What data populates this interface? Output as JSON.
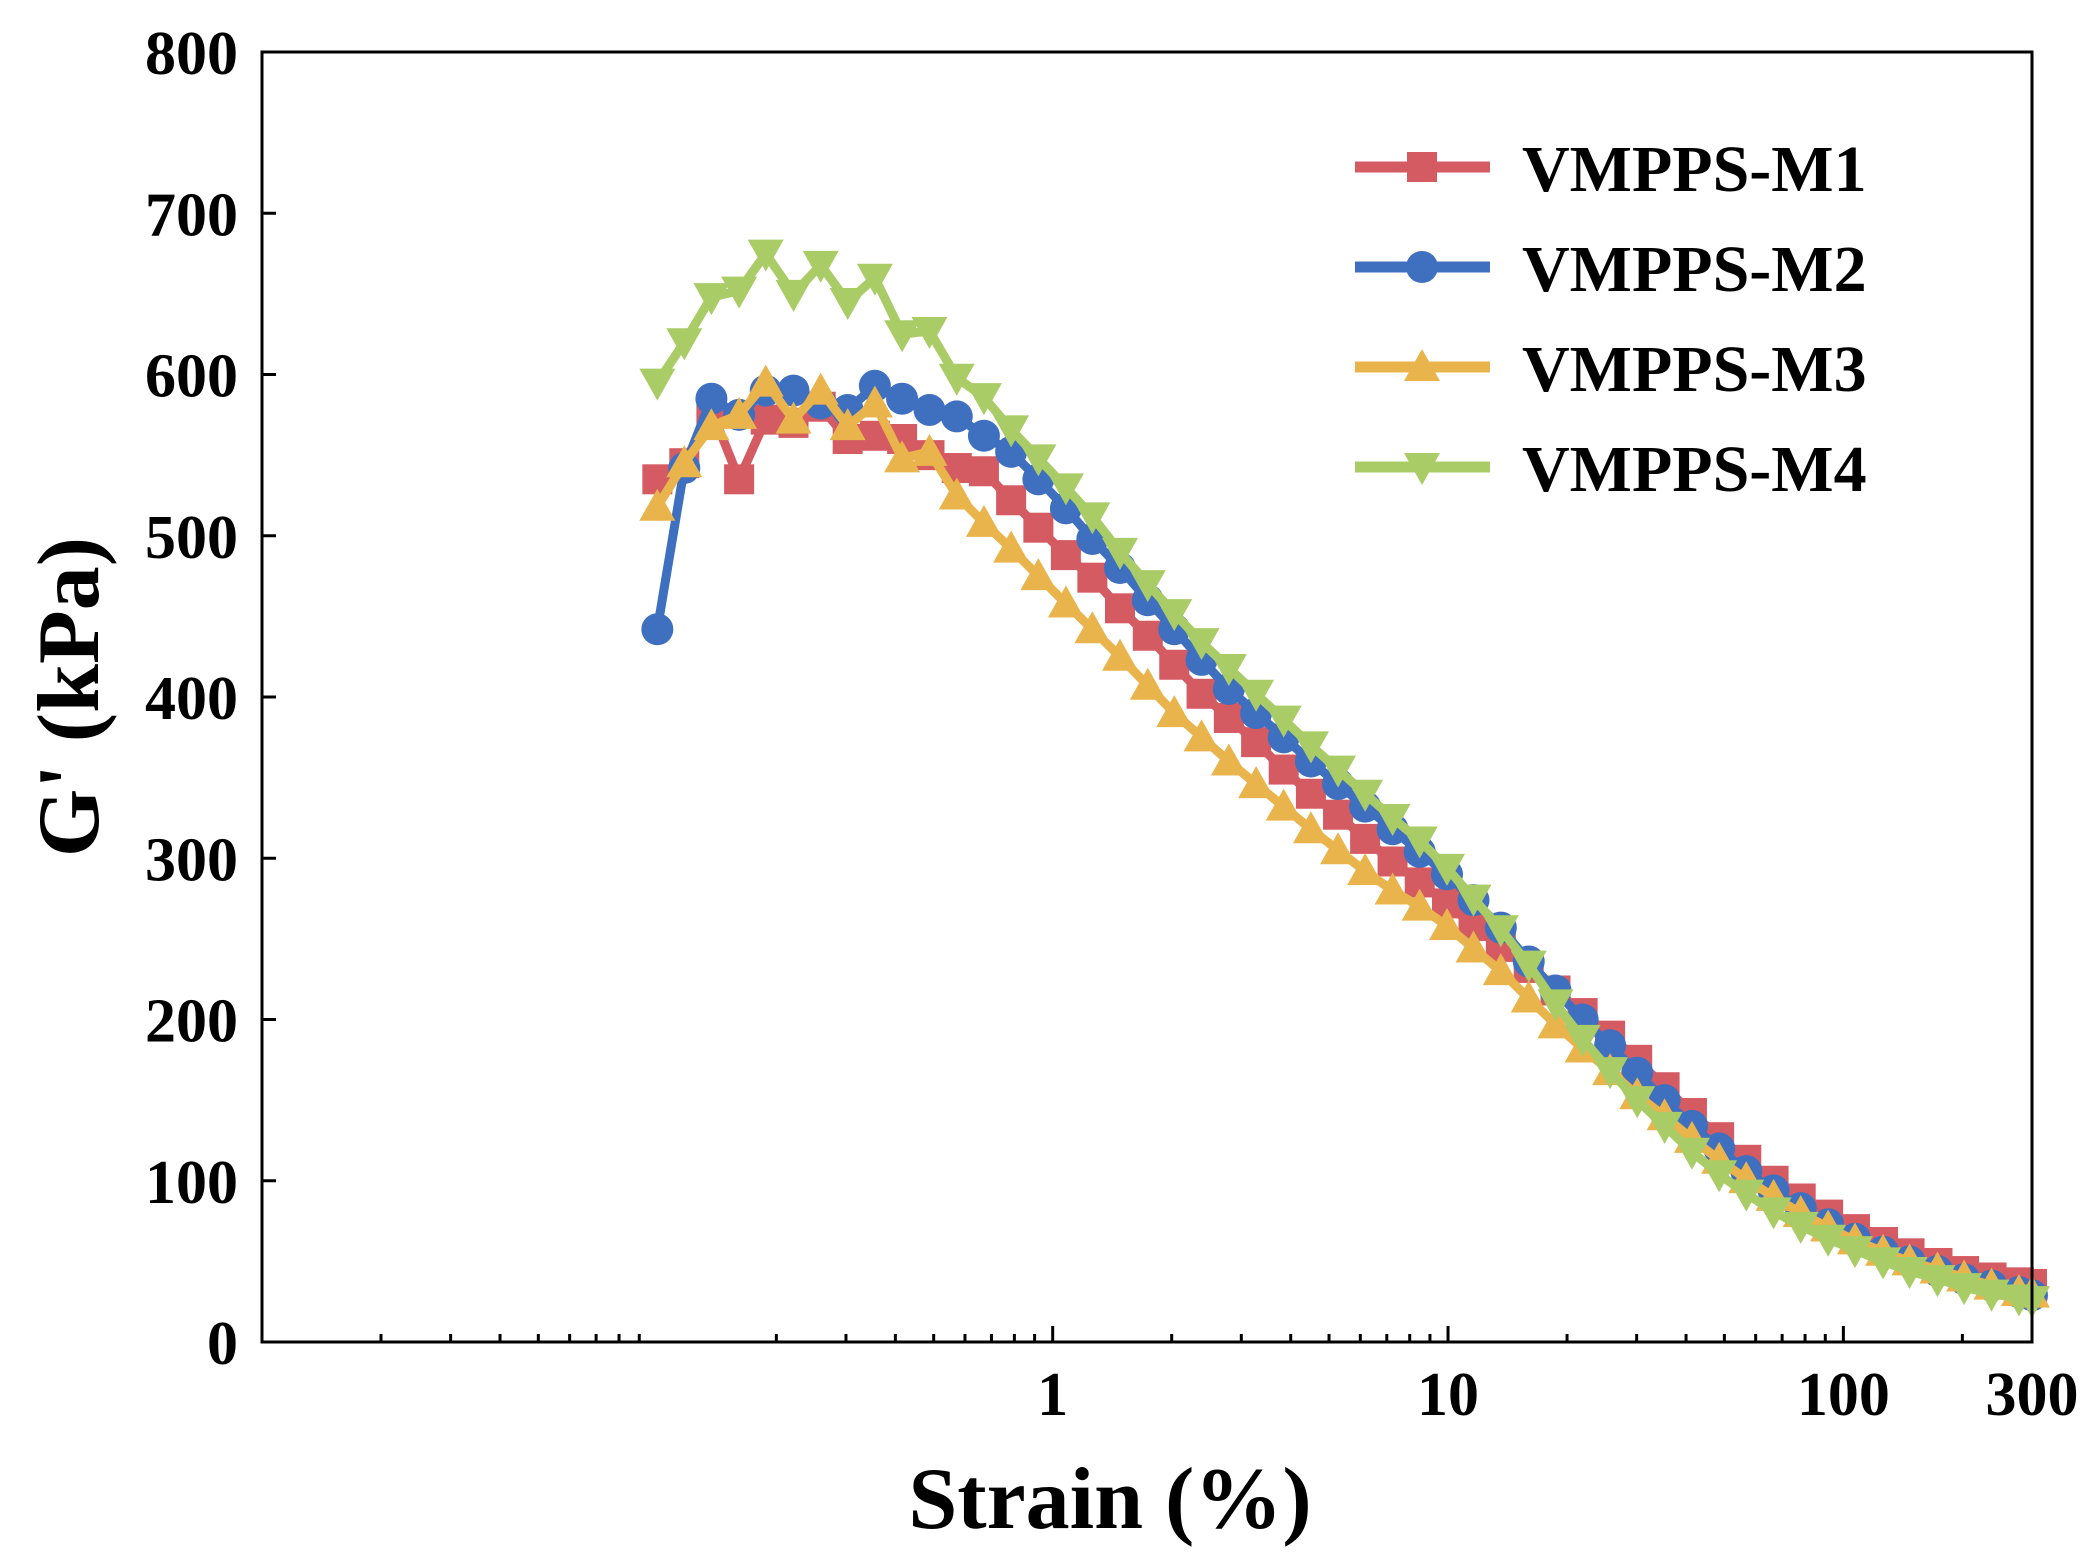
{
  "chart_data": {
    "type": "line",
    "xscale": "log",
    "xlabel": "Strain (%)",
    "ylabel": "G' (kPa)",
    "xlim": [
      0.01,
      300
    ],
    "ylim": [
      0,
      800
    ],
    "xticks": [
      1,
      10,
      100,
      300
    ],
    "xtick_labels": [
      "1",
      "10",
      "100",
      "300"
    ],
    "yticks": [
      0,
      100,
      200,
      300,
      400,
      500,
      600,
      700,
      800
    ],
    "ytick_labels": [
      "0",
      "100",
      "200",
      "300",
      "400",
      "500",
      "600",
      "700",
      "800"
    ],
    "legend_position": "top-right",
    "series": [
      {
        "name": "VMPPS-M1",
        "color": "#d55b63",
        "marker": "square",
        "points": [
          [
            0.1,
            535
          ],
          [
            0.117,
            545
          ],
          [
            0.137,
            578
          ],
          [
            0.161,
            535
          ],
          [
            0.188,
            572
          ],
          [
            0.221,
            570
          ],
          [
            0.259,
            580
          ],
          [
            0.303,
            560
          ],
          [
            0.355,
            562
          ],
          [
            0.416,
            560
          ],
          [
            0.488,
            550
          ],
          [
            0.572,
            542
          ],
          [
            0.67,
            540
          ],
          [
            0.785,
            522
          ],
          [
            0.92,
            505
          ],
          [
            1.08,
            488
          ],
          [
            1.26,
            474
          ],
          [
            1.48,
            455
          ],
          [
            1.74,
            438
          ],
          [
            2.03,
            420
          ],
          [
            2.38,
            402
          ],
          [
            2.79,
            387
          ],
          [
            3.27,
            372
          ],
          [
            3.84,
            355
          ],
          [
            4.5,
            340
          ],
          [
            5.27,
            327
          ],
          [
            6.17,
            312
          ],
          [
            7.24,
            298
          ],
          [
            8.48,
            285
          ],
          [
            9.94,
            272
          ],
          [
            11.6,
            258
          ],
          [
            13.6,
            245
          ],
          [
            16.0,
            232
          ],
          [
            18.7,
            218
          ],
          [
            21.9,
            204
          ],
          [
            25.7,
            190
          ],
          [
            30.1,
            175
          ],
          [
            35.3,
            158
          ],
          [
            41.4,
            142
          ],
          [
            48.5,
            127
          ],
          [
            56.8,
            113
          ],
          [
            66.6,
            100
          ],
          [
            78.0,
            89
          ],
          [
            91.5,
            79
          ],
          [
            107,
            70
          ],
          [
            126,
            62
          ],
          [
            147,
            55
          ],
          [
            173,
            49
          ],
          [
            202,
            44
          ],
          [
            237,
            40
          ],
          [
            278,
            37
          ],
          [
            300,
            36
          ]
        ]
      },
      {
        "name": "VMPPS-M2",
        "color": "#3f6fbf",
        "marker": "circle",
        "points": [
          [
            0.1,
            442
          ],
          [
            0.117,
            542
          ],
          [
            0.137,
            585
          ],
          [
            0.161,
            575
          ],
          [
            0.188,
            590
          ],
          [
            0.221,
            590
          ],
          [
            0.259,
            582
          ],
          [
            0.303,
            578
          ],
          [
            0.355,
            593
          ],
          [
            0.416,
            585
          ],
          [
            0.488,
            578
          ],
          [
            0.572,
            574
          ],
          [
            0.67,
            562
          ],
          [
            0.785,
            552
          ],
          [
            0.92,
            535
          ],
          [
            1.08,
            517
          ],
          [
            1.26,
            498
          ],
          [
            1.48,
            480
          ],
          [
            1.74,
            460
          ],
          [
            2.03,
            442
          ],
          [
            2.38,
            423
          ],
          [
            2.79,
            405
          ],
          [
            3.27,
            390
          ],
          [
            3.84,
            375
          ],
          [
            4.5,
            360
          ],
          [
            5.27,
            346
          ],
          [
            6.17,
            332
          ],
          [
            7.24,
            318
          ],
          [
            8.48,
            304
          ],
          [
            9.94,
            290
          ],
          [
            11.6,
            274
          ],
          [
            13.6,
            257
          ],
          [
            16.0,
            236
          ],
          [
            18.7,
            218
          ],
          [
            21.9,
            200
          ],
          [
            25.7,
            184
          ],
          [
            30.1,
            167
          ],
          [
            35.3,
            150
          ],
          [
            41.4,
            134
          ],
          [
            48.5,
            120
          ],
          [
            56.8,
            106
          ],
          [
            66.6,
            94
          ],
          [
            78.0,
            83
          ],
          [
            91.5,
            73
          ],
          [
            107,
            64
          ],
          [
            126,
            56
          ],
          [
            147,
            50
          ],
          [
            173,
            44
          ],
          [
            202,
            39
          ],
          [
            237,
            35
          ],
          [
            278,
            31
          ],
          [
            300,
            29
          ]
        ]
      },
      {
        "name": "VMPPS-M3",
        "color": "#e9b44c",
        "marker": "triangle-up",
        "points": [
          [
            0.1,
            518
          ],
          [
            0.117,
            545
          ],
          [
            0.137,
            568
          ],
          [
            0.161,
            575
          ],
          [
            0.188,
            595
          ],
          [
            0.221,
            572
          ],
          [
            0.259,
            590
          ],
          [
            0.303,
            568
          ],
          [
            0.355,
            582
          ],
          [
            0.416,
            548
          ],
          [
            0.488,
            552
          ],
          [
            0.572,
            525
          ],
          [
            0.67,
            508
          ],
          [
            0.785,
            492
          ],
          [
            0.92,
            475
          ],
          [
            1.08,
            458
          ],
          [
            1.26,
            442
          ],
          [
            1.48,
            425
          ],
          [
            1.74,
            407
          ],
          [
            2.03,
            390
          ],
          [
            2.38,
            375
          ],
          [
            2.79,
            360
          ],
          [
            3.27,
            346
          ],
          [
            3.84,
            332
          ],
          [
            4.5,
            318
          ],
          [
            5.27,
            305
          ],
          [
            6.17,
            292
          ],
          [
            7.24,
            280
          ],
          [
            8.48,
            270
          ],
          [
            9.94,
            258
          ],
          [
            11.6,
            244
          ],
          [
            13.6,
            230
          ],
          [
            16.0,
            213
          ],
          [
            18.7,
            197
          ],
          [
            21.9,
            182
          ],
          [
            25.7,
            168
          ],
          [
            30.1,
            153
          ],
          [
            35.3,
            140
          ],
          [
            41.4,
            126
          ],
          [
            48.5,
            113
          ],
          [
            56.8,
            101
          ],
          [
            66.6,
            90
          ],
          [
            78.0,
            80
          ],
          [
            91.5,
            71
          ],
          [
            107,
            63
          ],
          [
            126,
            56
          ],
          [
            147,
            50
          ],
          [
            173,
            45
          ],
          [
            202,
            40
          ],
          [
            237,
            35
          ],
          [
            278,
            31
          ],
          [
            300,
            30
          ]
        ]
      },
      {
        "name": "VMPPS-M4",
        "color": "#a9cc67",
        "marker": "triangle-down",
        "points": [
          [
            0.1,
            595
          ],
          [
            0.117,
            620
          ],
          [
            0.137,
            648
          ],
          [
            0.161,
            652
          ],
          [
            0.188,
            675
          ],
          [
            0.221,
            650
          ],
          [
            0.259,
            668
          ],
          [
            0.303,
            645
          ],
          [
            0.355,
            660
          ],
          [
            0.416,
            625
          ],
          [
            0.488,
            627
          ],
          [
            0.572,
            598
          ],
          [
            0.67,
            586
          ],
          [
            0.785,
            566
          ],
          [
            0.92,
            548
          ],
          [
            1.08,
            530
          ],
          [
            1.26,
            512
          ],
          [
            1.48,
            490
          ],
          [
            1.74,
            470
          ],
          [
            2.03,
            452
          ],
          [
            2.38,
            434
          ],
          [
            2.79,
            418
          ],
          [
            3.27,
            402
          ],
          [
            3.84,
            386
          ],
          [
            4.5,
            370
          ],
          [
            5.27,
            355
          ],
          [
            6.17,
            340
          ],
          [
            7.24,
            325
          ],
          [
            8.48,
            311
          ],
          [
            9.94,
            294
          ],
          [
            11.6,
            275
          ],
          [
            13.6,
            256
          ],
          [
            16.0,
            234
          ],
          [
            18.7,
            210
          ],
          [
            21.9,
            188
          ],
          [
            25.7,
            168
          ],
          [
            30.1,
            150
          ],
          [
            35.3,
            134
          ],
          [
            41.4,
            118
          ],
          [
            48.5,
            104
          ],
          [
            56.8,
            92
          ],
          [
            66.6,
            81
          ],
          [
            78.0,
            72
          ],
          [
            91.5,
            64
          ],
          [
            107,
            57
          ],
          [
            126,
            50
          ],
          [
            147,
            44
          ],
          [
            173,
            39
          ],
          [
            202,
            34
          ],
          [
            237,
            30
          ],
          [
            278,
            27
          ],
          [
            300,
            26
          ]
        ]
      }
    ]
  }
}
